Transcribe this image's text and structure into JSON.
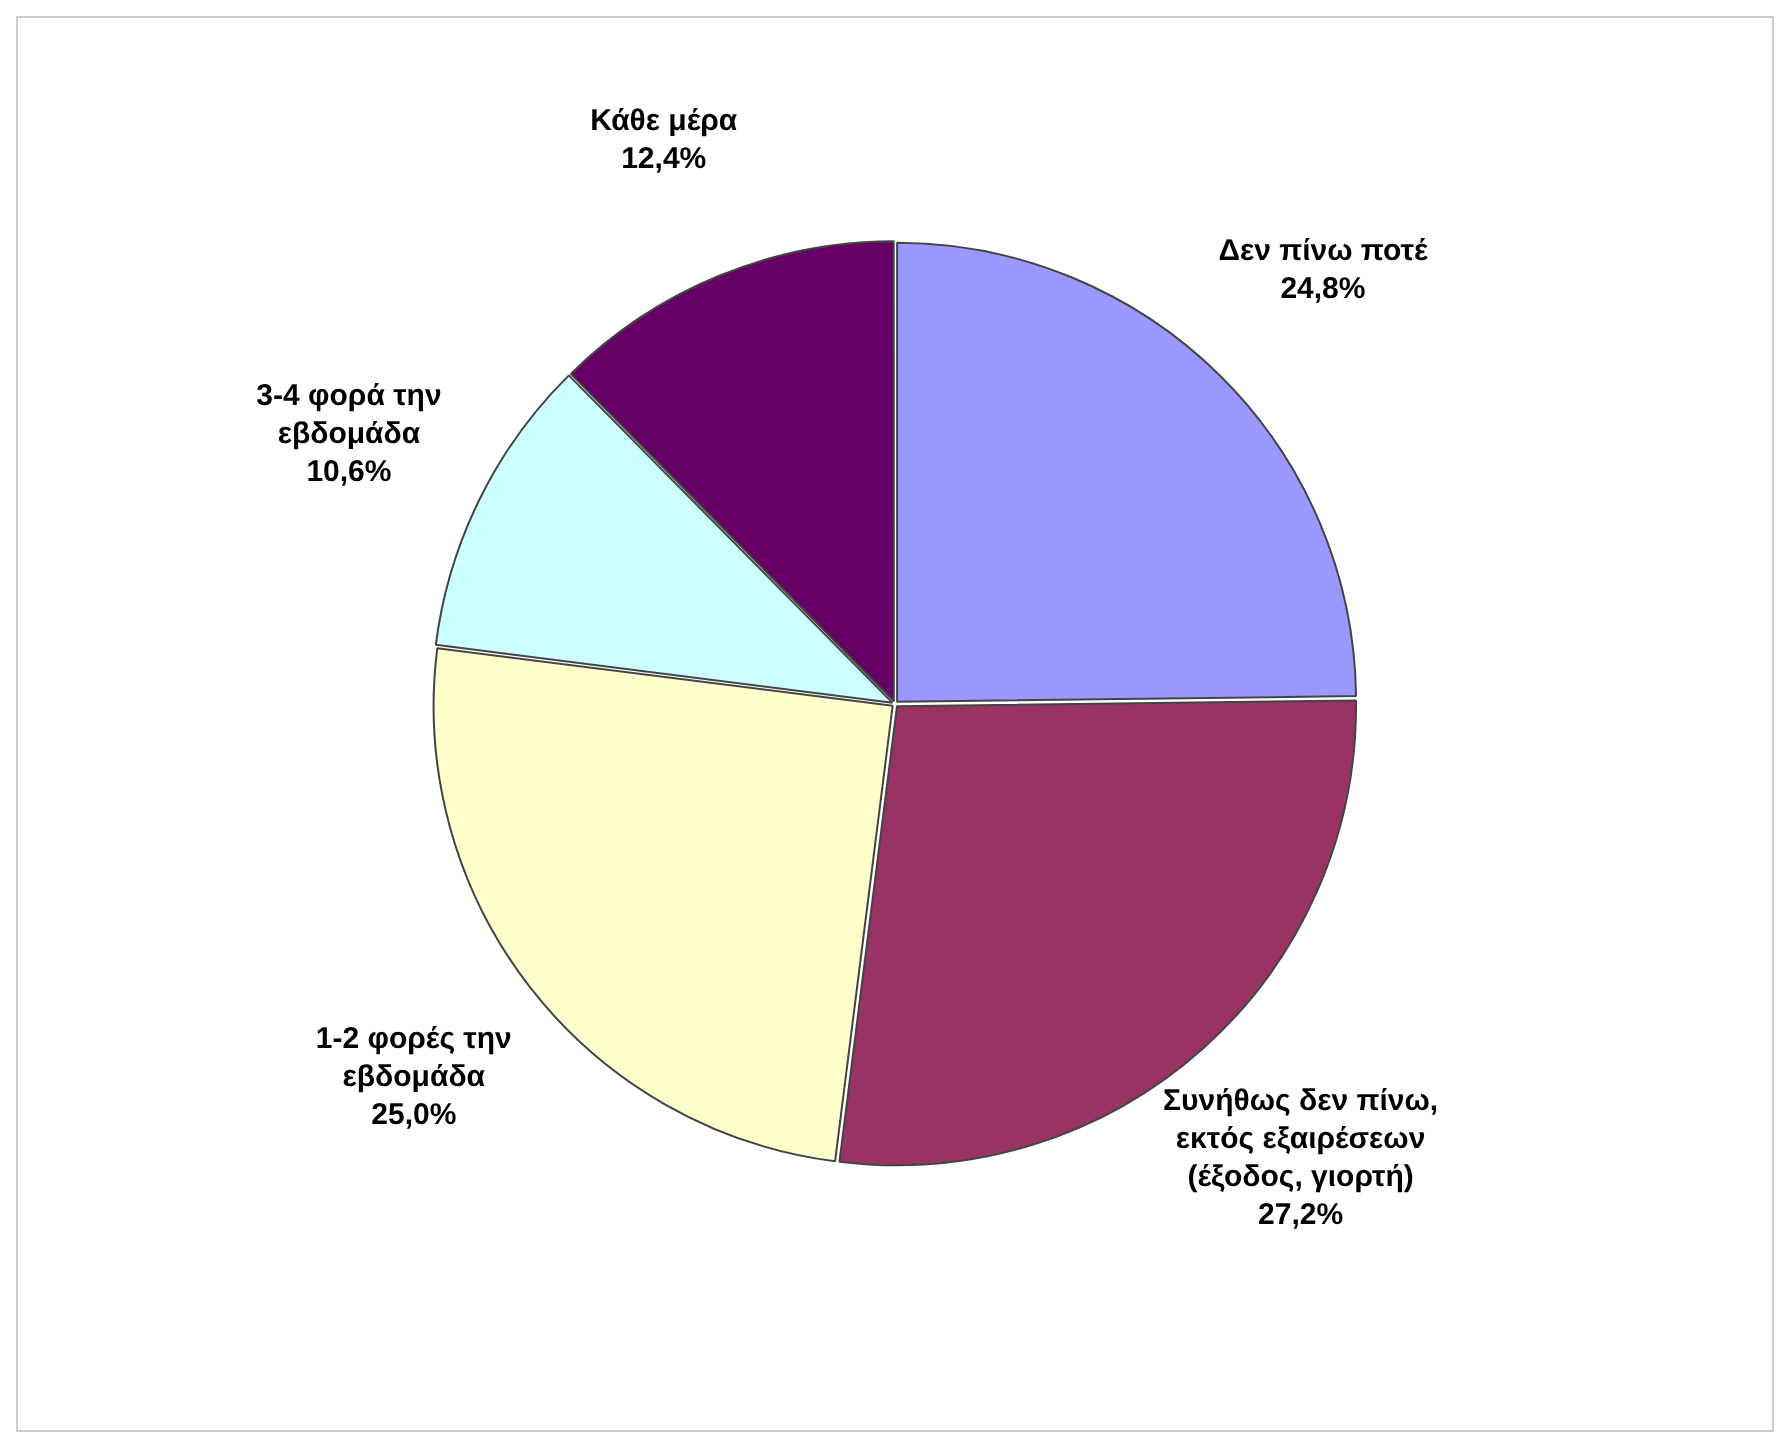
{
  "chart_data": {
    "type": "pie",
    "categories": [
      "Δεν πίνω ποτέ",
      "Συνήθως δεν πίνω, εκτός εξαιρέσεων (έξοδος, γιορτή)",
      "1-2 φορές την εβδομάδα",
      "3-4 φορά την εβδομάδα",
      "Κάθε μέρα"
    ],
    "values": [
      24.8,
      27.2,
      25.0,
      10.6,
      12.4
    ],
    "value_labels": [
      "24,8%",
      "27,2%",
      "25,0%",
      "10,6%",
      "12,4%"
    ],
    "colors": [
      "#9999ff",
      "#993366",
      "#ffffcc",
      "#ccffff",
      "#660066"
    ],
    "legend": false
  }
}
